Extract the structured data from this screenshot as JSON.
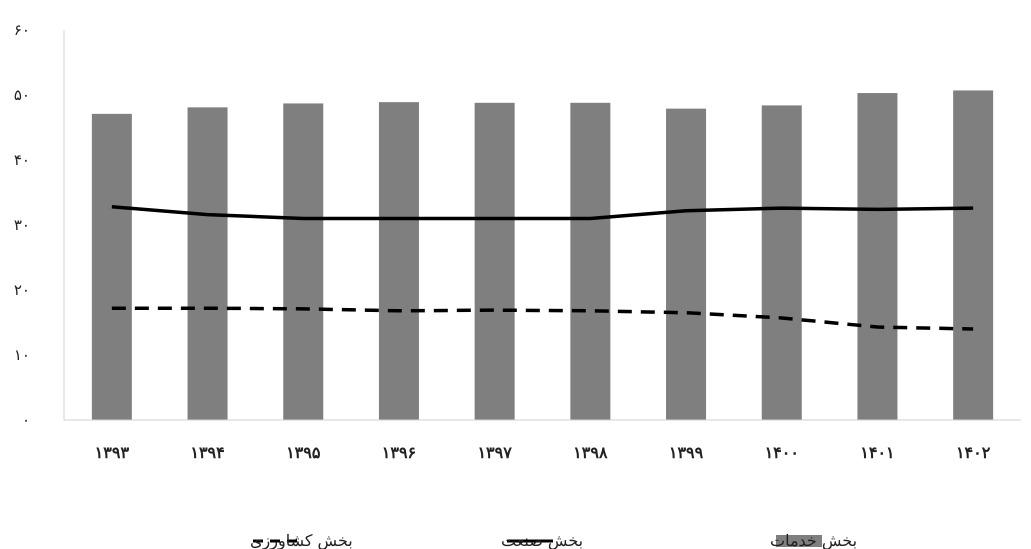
{
  "chart_data": {
    "type": "bar",
    "categories": [
      "۱۳۹۳",
      "۱۳۹۴",
      "۱۳۹۵",
      "۱۳۹۶",
      "۱۳۹۷",
      "۱۳۹۸",
      "۱۳۹۹",
      "۱۴۰۰",
      "۱۴۰۱",
      "۱۴۰۲"
    ],
    "y_ticks": [
      "۰",
      "۱۰",
      "۲۰",
      "۳۰",
      "۴۰",
      "۵۰",
      "۶۰"
    ],
    "ylim": [
      0,
      60
    ],
    "grid": false,
    "legend_position": "bottom",
    "series": [
      {
        "name": "بخش خدمات",
        "kind": "bar",
        "color": "#7f7f7f",
        "values": [
          47.1,
          48.1,
          48.7,
          48.9,
          48.8,
          48.8,
          47.9,
          48.4,
          50.3,
          50.7
        ]
      },
      {
        "name": "بخش صنعت",
        "kind": "line",
        "style": "solid",
        "color": "#000000",
        "values": [
          32.8,
          31.6,
          31.0,
          31.0,
          31.0,
          31.0,
          32.2,
          32.6,
          32.4,
          32.6
        ]
      },
      {
        "name": "بخش کشاورزی",
        "kind": "line",
        "style": "dashed",
        "color": "#000000",
        "values": [
          17.2,
          17.2,
          17.1,
          16.8,
          16.9,
          16.8,
          16.5,
          15.7,
          14.3,
          14.0
        ]
      }
    ]
  }
}
